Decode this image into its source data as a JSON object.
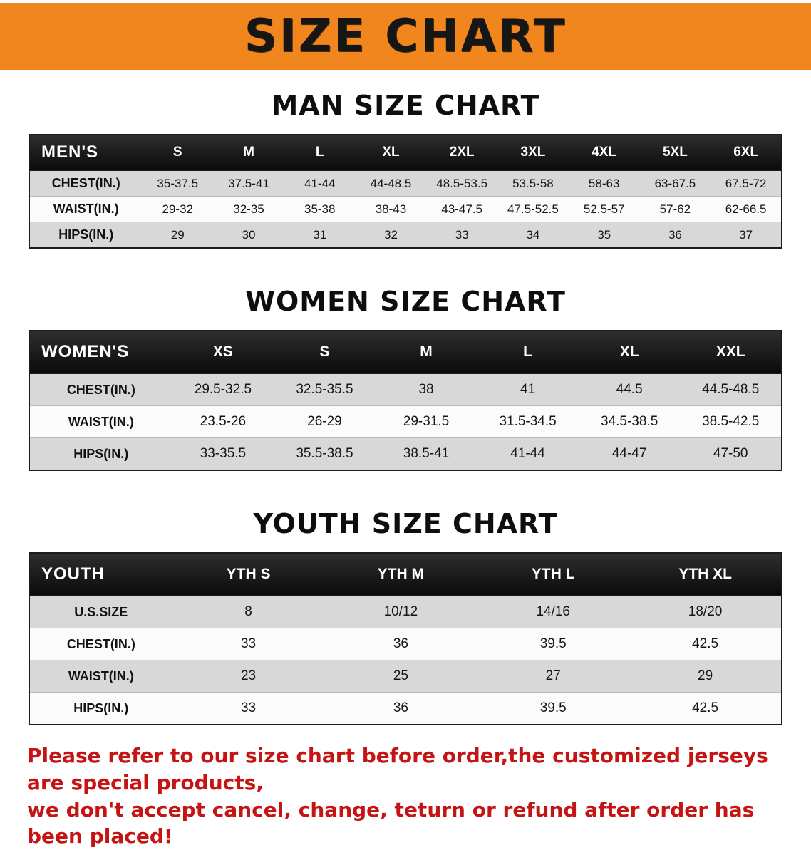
{
  "theme": {
    "banner_bg": "#f1861f",
    "header_bg": "#151515",
    "row_gray": "#d8d8d8",
    "row_light": "#fbfbfb",
    "disclaimer_color": "#c41414",
    "text": "#111111"
  },
  "banner": {
    "title": "SIZE CHART"
  },
  "sections": [
    {
      "heading": "MAN SIZE CHART",
      "table": {
        "label": "MEN'S",
        "columns": [
          "S",
          "M",
          "L",
          "XL",
          "2XL",
          "3XL",
          "4XL",
          "5XL",
          "6XL"
        ],
        "rows": [
          {
            "label": "CHEST(IN.)",
            "values": [
              "35-37.5",
              "37.5-41",
              "41-44",
              "44-48.5",
              "48.5-53.5",
              "53.5-58",
              "58-63",
              "63-67.5",
              "67.5-72"
            ]
          },
          {
            "label": "WAIST(IN.)",
            "values": [
              "29-32",
              "32-35",
              "35-38",
              "38-43",
              "43-47.5",
              "47.5-52.5",
              "52.5-57",
              "57-62",
              "62-66.5"
            ]
          },
          {
            "label": "HIPS(IN.)",
            "values": [
              "29",
              "30",
              "31",
              "32",
              "33",
              "34",
              "35",
              "36",
              "37"
            ]
          }
        ]
      }
    },
    {
      "heading": "WOMEN SIZE CHART",
      "table": {
        "label": "WOMEN'S",
        "columns": [
          "XS",
          "S",
          "M",
          "L",
          "XL",
          "XXL"
        ],
        "rows": [
          {
            "label": "CHEST(IN.)",
            "values": [
              "29.5-32.5",
              "32.5-35.5",
              "38",
              "41",
              "44.5",
              "44.5-48.5"
            ]
          },
          {
            "label": "WAIST(IN.)",
            "values": [
              "23.5-26",
              "26-29",
              "29-31.5",
              "31.5-34.5",
              "34.5-38.5",
              "38.5-42.5"
            ]
          },
          {
            "label": "HIPS(IN.)",
            "values": [
              "33-35.5",
              "35.5-38.5",
              "38.5-41",
              "41-44",
              "44-47",
              "47-50"
            ]
          }
        ]
      }
    },
    {
      "heading": "YOUTH SIZE CHART",
      "table": {
        "label": "YOUTH",
        "columns": [
          "YTH S",
          "YTH M",
          "YTH L",
          "YTH XL"
        ],
        "rows": [
          {
            "label": "U.S.SIZE",
            "values": [
              "8",
              "10/12",
              "14/16",
              "18/20"
            ]
          },
          {
            "label": "CHEST(IN.)",
            "values": [
              "33",
              "36",
              "39.5",
              "42.5"
            ]
          },
          {
            "label": "WAIST(IN.)",
            "values": [
              "23",
              "25",
              "27",
              "29"
            ]
          },
          {
            "label": "HIPS(IN.)",
            "values": [
              "33",
              "36",
              "39.5",
              "42.5"
            ]
          }
        ]
      }
    }
  ],
  "disclaimer": {
    "line1": "Please refer to our size chart before order,the customized jerseys are special products,",
    "line2": "we don't accept cancel, change, teturn or refund after order has been placed!"
  }
}
